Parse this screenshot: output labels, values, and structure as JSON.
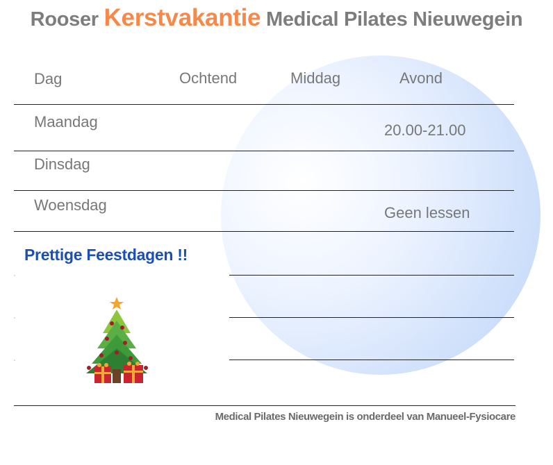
{
  "title": {
    "prefix": "Rooser ",
    "highlight": "Kerstvakantie",
    "suffix": " Medical Pilates Nieuwegein",
    "highlight_color": "#f6894a"
  },
  "table": {
    "headers": [
      "Dag",
      "Ochtend",
      "Middag",
      "Avond"
    ],
    "rows": [
      {
        "day": "Maandag",
        "avond": "20.00-21.00"
      },
      {
        "day": "Dinsdag",
        "avond": ""
      },
      {
        "day": "Woensdag",
        "avond": "Geen lessen"
      }
    ]
  },
  "greeting": "Prettige Feestdagen !!",
  "greeting_color": "#1b4fb0",
  "footer": "Medical Pilates Nieuwegein is onderdeel van Manueel-Fysiocare",
  "decoration": {
    "icon": "christmas-tree-icon"
  }
}
